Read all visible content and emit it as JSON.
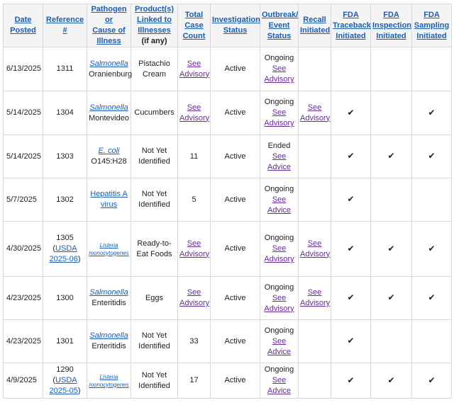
{
  "headers": {
    "date": [
      "Date",
      "Posted"
    ],
    "reference": [
      "Reference",
      "#"
    ],
    "pathogen": [
      "Pathogen",
      "or",
      "Cause of",
      "Illness"
    ],
    "products": [
      "Product(s)",
      "Linked to",
      "Illnesses"
    ],
    "products_note": "(if any)",
    "total": [
      "Total",
      "Case",
      "Count"
    ],
    "investigation": [
      "Investigation",
      "Status"
    ],
    "outbreak": [
      "Outbreak/",
      "Event",
      "Status"
    ],
    "recall": [
      "Recall",
      "Initiated"
    ],
    "traceback": [
      "FDA",
      "Traceback",
      "Initiated"
    ],
    "inspection": [
      "FDA",
      "Inspection",
      "Initiated"
    ],
    "sampling": [
      "FDA",
      "Sampling",
      "Initiated"
    ]
  },
  "check": "✔",
  "rows": [
    {
      "date": "6/13/2025",
      "ref": "1311",
      "ref_link": "",
      "path_ital": "Salmonella",
      "path_rest": "Oranienburg",
      "product": "Pistachio Cream",
      "count_link": "See Advisory",
      "count": "",
      "status": "Active",
      "outbreak": "Ongoing",
      "outbreak_link": "See Advisory",
      "recall": "",
      "trace": "",
      "insp": "",
      "samp": ""
    },
    {
      "date": "5/14/2025",
      "ref": "1304",
      "ref_link": "",
      "path_ital": "Salmonella",
      "path_rest": "Montevideo",
      "product": "Cucumbers",
      "count_link": "See Advisory",
      "count": "",
      "status": "Active",
      "outbreak": "Ongoing",
      "outbreak_link": "See Advisory",
      "recall": "See Advisory",
      "trace": "✔",
      "insp": "",
      "samp": "✔"
    },
    {
      "date": "5/14/2025",
      "ref": "1303",
      "ref_link": "",
      "path_ital": "E. coli",
      "path_rest": "O145:H28",
      "product": "Not Yet Identified",
      "count_link": "",
      "count": "11",
      "status": "Active",
      "outbreak": "Ended",
      "outbreak_link": "See Advice",
      "recall": "",
      "trace": "✔",
      "insp": "✔",
      "samp": "✔"
    },
    {
      "date": "5/7/2025",
      "ref": "1302",
      "ref_link": "",
      "path_link": "Hepatitis A virus",
      "product": "Not Yet Identified",
      "count_link": "",
      "count": "5",
      "status": "Active",
      "outbreak": "Ongoing",
      "outbreak_link": "See Advice",
      "recall": "",
      "trace": "✔",
      "insp": "",
      "samp": ""
    },
    {
      "date": "4/30/2025",
      "ref": "1305",
      "ref_link": "USDA 2025-06",
      "path_tiny": "Listeria monocytogenes",
      "product": "Ready-to-Eat Foods",
      "count_link": "See Advisory",
      "count": "",
      "status": "Active",
      "outbreak": "Ongoing",
      "outbreak_link": "See Advisory",
      "recall": "See Advisory",
      "trace": "✔",
      "insp": "✔",
      "samp": "✔"
    },
    {
      "date": "4/23/2025",
      "ref": "1300",
      "ref_link": "",
      "path_ital": "Salmonella",
      "path_rest": "Enteritidis",
      "product": "Eggs",
      "count_link": "See Advisory",
      "count": "",
      "status": "Active",
      "outbreak": "Ongoing",
      "outbreak_link": "See Advisory",
      "recall": "See Advisory",
      "trace": "✔",
      "insp": "✔",
      "samp": "✔"
    },
    {
      "date": "4/23/2025",
      "ref": "1301",
      "ref_link": "",
      "path_ital": "Salmonella",
      "path_rest": "Enteritidis",
      "product": "Not Yet Identified",
      "count_link": "",
      "count": "33",
      "status": "Active",
      "outbreak": "Ongoing",
      "outbreak_link": "See Advice",
      "recall": "",
      "trace": "✔",
      "insp": "",
      "samp": ""
    },
    {
      "date": "4/9/2025",
      "ref": "1290",
      "ref_link": "USDA 2025-05",
      "path_tiny": "Listeria monocytogenes",
      "product": "Not Yet Identified",
      "count_link": "",
      "count": "17",
      "status": "Active",
      "outbreak": "Ongoing",
      "outbreak_link": "See Advice",
      "recall": "",
      "trace": "✔",
      "insp": "✔",
      "samp": "✔"
    }
  ]
}
